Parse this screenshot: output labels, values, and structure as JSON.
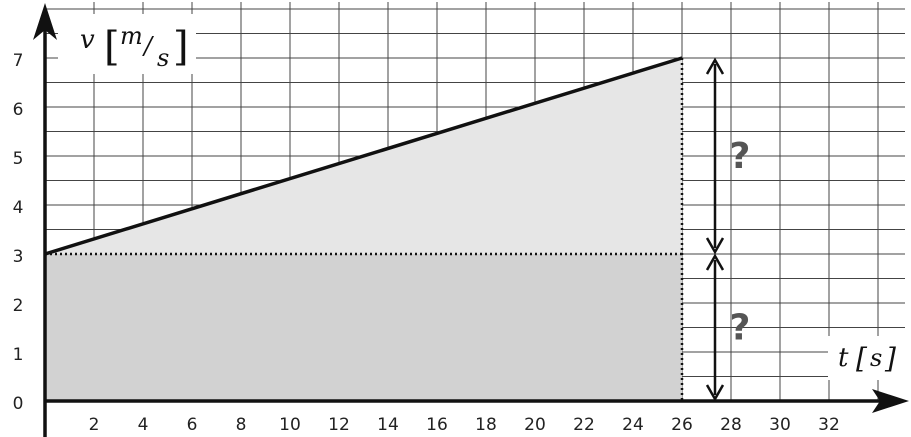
{
  "chart_data": {
    "type": "line",
    "x": [
      0,
      26
    ],
    "y": [
      3,
      7
    ],
    "xlabel": "t",
    "xunit": "s",
    "ylabel": "v",
    "yunit_numerator": "m",
    "yunit_denominator": "s",
    "xlim": [
      0,
      34
    ],
    "ylim": [
      0,
      7
    ],
    "xticks": [
      2,
      4,
      6,
      8,
      10,
      12,
      14,
      16,
      18,
      20,
      22,
      24,
      26,
      28,
      30,
      32
    ],
    "yticks": [
      0,
      1,
      2,
      3,
      4,
      5,
      6,
      7
    ],
    "grid": true,
    "grid_x_step": 2,
    "grid_y_step": 0.5,
    "dotted_reference": {
      "y": 3,
      "x": 26
    },
    "annotations": [
      {
        "text": "?",
        "y_from": 3,
        "y_to": 7
      },
      {
        "text": "?",
        "y_from": 0,
        "y_to": 3
      }
    ],
    "fill_colors": {
      "upper": "#e6e6e6",
      "lower": "#d2d2d2"
    }
  }
}
